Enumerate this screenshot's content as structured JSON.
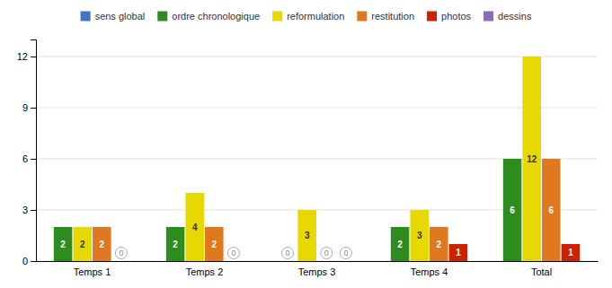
{
  "chart_data": {
    "type": "bar",
    "categories": [
      "Temps 1",
      "Temps 2",
      "Temps 3",
      "Temps 4",
      "Total"
    ],
    "series": [
      {
        "name": "sens global",
        "color": "#4472C4",
        "values": [
          null,
          null,
          null,
          null,
          null
        ]
      },
      {
        "name": "ordre chronologique",
        "color": "#2E8B1E",
        "values": [
          2,
          2,
          0,
          2,
          6
        ]
      },
      {
        "name": "reformulation",
        "color": "#E6D800",
        "values": [
          2,
          4,
          3,
          3,
          12
        ]
      },
      {
        "name": "restitution",
        "color": "#E07820",
        "values": [
          2,
          2,
          0,
          2,
          6
        ]
      },
      {
        "name": "photos",
        "color": "#CC2200",
        "values": [
          0,
          0,
          0,
          1,
          1
        ]
      },
      {
        "name": "dessins",
        "color": "#8B6BB1",
        "values": [
          null,
          null,
          null,
          null,
          null
        ]
      }
    ],
    "ylim": [
      0,
      13
    ],
    "yticks": [
      0,
      3,
      6,
      9,
      12
    ],
    "grid": true,
    "data_labels": true
  }
}
